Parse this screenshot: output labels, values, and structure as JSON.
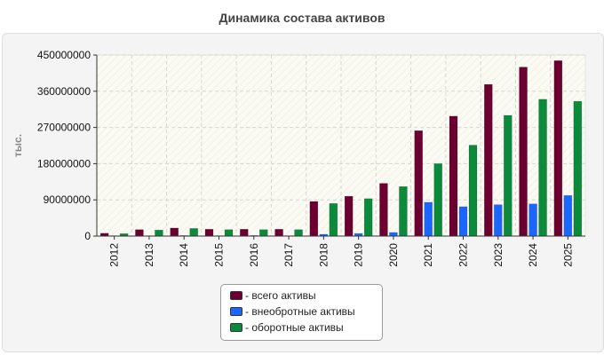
{
  "chart_data": {
    "type": "bar",
    "title": "Динамика состава активов",
    "ylabel": "тыс.",
    "ylim": [
      0,
      450000000
    ],
    "yticks": [
      "0",
      "90000000",
      "180000000",
      "270000000",
      "360000000",
      "450000000"
    ],
    "categories": [
      "2012",
      "2013",
      "2014",
      "2015",
      "2016",
      "2017",
      "2018",
      "2019",
      "2020",
      "2021",
      "2022",
      "2023",
      "2024",
      "2025"
    ],
    "series": [
      {
        "name": "- всего активы",
        "color": "#6b0030",
        "values": [
          7000000,
          16000000,
          20000000,
          17000000,
          17000000,
          17000000,
          86000000,
          99000000,
          131000000,
          262000000,
          298000000,
          377000000,
          420000000,
          436000000
        ]
      },
      {
        "name": "- внеобротные активы",
        "color": "#1a66ff",
        "values": [
          1000000,
          1000000,
          1500000,
          1000000,
          1500000,
          1000000,
          4500000,
          6500000,
          9000000,
          84000000,
          73000000,
          78000000,
          80000000,
          101000000
        ]
      },
      {
        "name": "- оборотные активы",
        "color": "#0a8a3a",
        "values": [
          6000000,
          15000000,
          19000000,
          16000000,
          16000000,
          16000000,
          81000000,
          93000000,
          123000000,
          180000000,
          226000000,
          300000000,
          340000000,
          335000000
        ]
      }
    ],
    "grid": true,
    "legend_position": "bottom"
  }
}
